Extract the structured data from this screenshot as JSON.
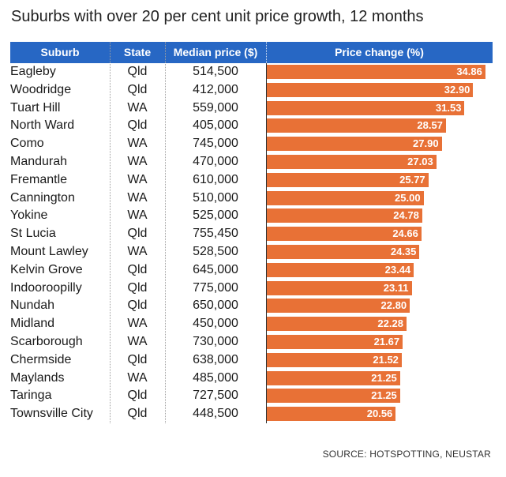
{
  "title": "Suburbs with over 20 per cent unit price growth, 12 months",
  "source": "SOURCE: HOTSPOTTING, NEUSTAR",
  "colors": {
    "header_bg": "#2767c4",
    "bar": "#e87136"
  },
  "chart_data": {
    "type": "bar",
    "orientation": "horizontal",
    "title": "Suburbs with over 20 per cent unit price growth, 12 months",
    "columns": [
      "Suburb",
      "State",
      "Median price ($)",
      "Price change (%)"
    ],
    "xlim": [
      0,
      35
    ],
    "rows": [
      {
        "suburb": "Eagleby",
        "state": "Qld",
        "price": "514,500",
        "change": 34.86,
        "label": "34.86"
      },
      {
        "suburb": "Woodridge",
        "state": "Qld",
        "price": "412,000",
        "change": 32.9,
        "label": "32.90"
      },
      {
        "suburb": "Tuart Hill",
        "state": "WA",
        "price": "559,000",
        "change": 31.53,
        "label": "31.53"
      },
      {
        "suburb": "North Ward",
        "state": "Qld",
        "price": "405,000",
        "change": 28.57,
        "label": "28.57"
      },
      {
        "suburb": "Como",
        "state": "WA",
        "price": "745,000",
        "change": 27.9,
        "label": "27.90"
      },
      {
        "suburb": "Mandurah",
        "state": "WA",
        "price": "470,000",
        "change": 27.03,
        "label": "27.03"
      },
      {
        "suburb": "Fremantle",
        "state": "WA",
        "price": "610,000",
        "change": 25.77,
        "label": "25.77"
      },
      {
        "suburb": "Cannington",
        "state": "WA",
        "price": "510,000",
        "change": 25.0,
        "label": "25.00"
      },
      {
        "suburb": "Yokine",
        "state": "WA",
        "price": "525,000",
        "change": 24.78,
        "label": "24.78"
      },
      {
        "suburb": "St Lucia",
        "state": "Qld",
        "price": "755,450",
        "change": 24.66,
        "label": "24.66"
      },
      {
        "suburb": "Mount Lawley",
        "state": "WA",
        "price": "528,500",
        "change": 24.35,
        "label": "24.35"
      },
      {
        "suburb": "Kelvin Grove",
        "state": "Qld",
        "price": "645,000",
        "change": 23.44,
        "label": "23.44"
      },
      {
        "suburb": "Indooroopilly",
        "state": "Qld",
        "price": "775,000",
        "change": 23.11,
        "label": "23.11"
      },
      {
        "suburb": "Nundah",
        "state": "Qld",
        "price": "650,000",
        "change": 22.8,
        "label": "22.80"
      },
      {
        "suburb": "Midland",
        "state": "WA",
        "price": "450,000",
        "change": 22.28,
        "label": "22.28"
      },
      {
        "suburb": "Scarborough",
        "state": "WA",
        "price": "730,000",
        "change": 21.67,
        "label": "21.67"
      },
      {
        "suburb": "Chermside",
        "state": "Qld",
        "price": "638,000",
        "change": 21.52,
        "label": "21.52"
      },
      {
        "suburb": "Maylands",
        "state": "WA",
        "price": "485,000",
        "change": 21.25,
        "label": "21.25"
      },
      {
        "suburb": "Taringa",
        "state": "Qld",
        "price": "727,500",
        "change": 21.25,
        "label": "21.25"
      },
      {
        "suburb": "Townsville City",
        "state": "Qld",
        "price": "448,500",
        "change": 20.56,
        "label": "20.56"
      }
    ]
  }
}
